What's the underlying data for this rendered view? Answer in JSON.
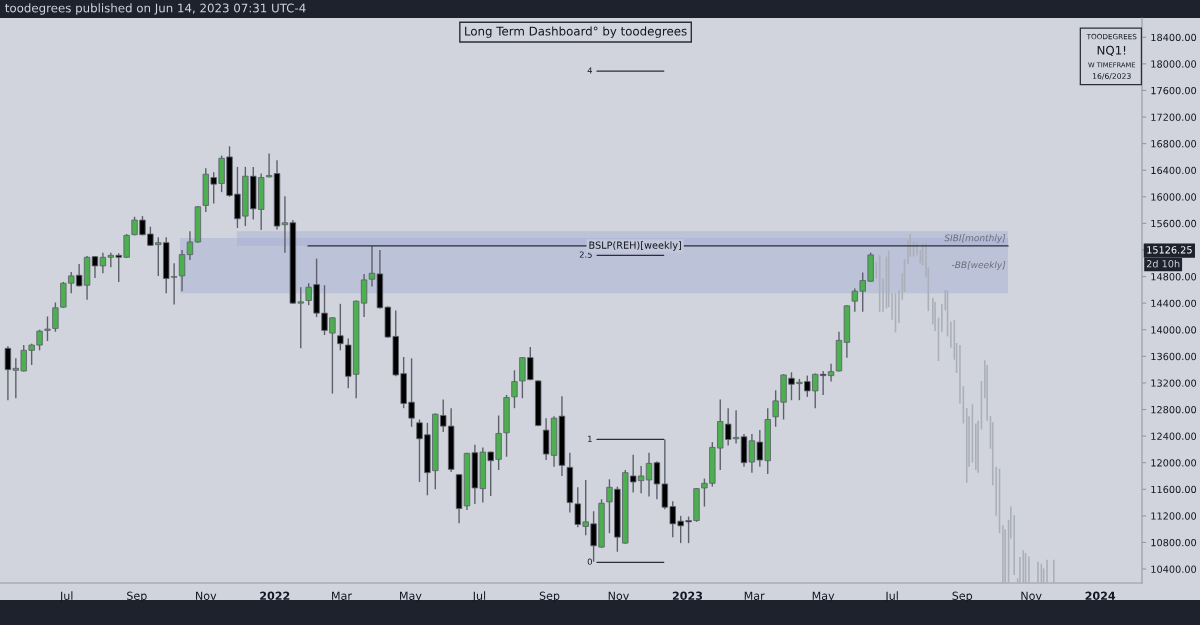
{
  "chart_data": {
    "type": "candlestick",
    "title": "Long Term Dashboard° by toodegrees",
    "annotations": [
      "toodegrees published on Jun 14, 2023 07:31 UTC-4",
      "TOODEGREES",
      "NQ1!",
      "W TIMEFRAME",
      "16/6/2023",
      "15126.25",
      "2d 10h"
    ],
    "series": [
      {
        "type": "candlestick",
        "x": [
          "2021-05-10",
          "2021-05-17",
          "2021-05-24",
          "2021-05-31",
          "2021-06-07",
          "2021-06-14",
          "2021-06-21",
          "2021-06-28",
          "2021-07-05",
          "2021-07-12",
          "2021-07-19",
          "2021-07-26",
          "2021-08-02",
          "2021-08-09",
          "2021-08-16",
          "2021-08-23",
          "2021-08-30",
          "2021-09-06",
          "2021-09-13",
          "2021-09-20",
          "2021-09-27",
          "2021-10-04",
          "2021-10-11",
          "2021-10-18",
          "2021-10-25",
          "2021-11-01",
          "2021-11-08",
          "2021-11-15",
          "2021-11-22",
          "2021-11-29",
          "2021-12-06",
          "2021-12-13",
          "2021-12-20",
          "2021-12-27",
          "2022-01-03",
          "2022-01-10",
          "2022-01-17",
          "2022-01-24",
          "2022-01-31",
          "2022-02-07",
          "2022-02-14",
          "2022-02-21",
          "2022-02-28",
          "2022-03-07",
          "2022-03-14",
          "2022-03-21",
          "2022-03-28",
          "2022-04-04",
          "2022-04-11",
          "2022-04-18",
          "2022-04-25",
          "2022-05-02",
          "2022-05-09",
          "2022-05-16",
          "2022-05-23",
          "2022-05-30",
          "2022-06-06",
          "2022-06-13",
          "2022-06-20",
          "2022-06-27",
          "2022-07-04",
          "2022-07-11",
          "2022-07-18",
          "2022-07-25",
          "2022-08-01",
          "2022-08-08",
          "2022-08-15",
          "2022-08-22",
          "2022-08-29",
          "2022-09-05",
          "2022-09-12",
          "2022-09-19",
          "2022-09-26",
          "2022-10-03",
          "2022-10-10",
          "2022-10-17",
          "2022-10-24",
          "2022-10-31",
          "2022-11-07",
          "2022-11-14",
          "2022-11-21",
          "2022-11-28",
          "2022-12-05",
          "2022-12-12",
          "2022-12-19",
          "2022-12-26",
          "2023-01-02",
          "2023-01-09",
          "2023-01-16",
          "2023-01-23",
          "2023-01-30",
          "2023-02-06",
          "2023-02-13",
          "2023-02-20",
          "2023-02-27",
          "2023-03-06",
          "2023-03-13",
          "2023-03-20",
          "2023-03-27",
          "2023-04-03",
          "2023-04-10",
          "2023-04-17",
          "2023-04-24",
          "2023-05-01",
          "2023-05-08",
          "2023-05-15",
          "2023-05-22",
          "2023-05-29",
          "2023-06-05",
          "2023-06-12"
        ],
        "ohlc": [
          [
            13720,
            13750,
            12940,
            13400
          ],
          [
            13390,
            13570,
            12970,
            13420
          ],
          [
            13380,
            13770,
            13370,
            13690
          ],
          [
            13690,
            13790,
            13470,
            13770
          ],
          [
            13770,
            14000,
            13690,
            13980
          ],
          [
            13990,
            14200,
            13830,
            14010
          ],
          [
            14020,
            14410,
            13970,
            14330
          ],
          [
            14340,
            14720,
            14330,
            14700
          ],
          [
            14700,
            14870,
            14550,
            14810
          ],
          [
            14820,
            14990,
            14650,
            14660
          ],
          [
            14670,
            15110,
            14450,
            15090
          ],
          [
            15100,
            15110,
            14780,
            14960
          ],
          [
            14960,
            15160,
            14850,
            15090
          ],
          [
            15090,
            15160,
            14940,
            15120
          ],
          [
            15120,
            15150,
            14720,
            15090
          ],
          [
            15090,
            15440,
            15080,
            15420
          ],
          [
            15430,
            15700,
            15420,
            15650
          ],
          [
            15650,
            15710,
            15420,
            15430
          ],
          [
            15440,
            15550,
            15260,
            15270
          ],
          [
            15280,
            15390,
            14810,
            15310
          ],
          [
            15310,
            15390,
            14550,
            14770
          ],
          [
            14790,
            15000,
            14380,
            14800
          ],
          [
            14810,
            15200,
            14580,
            15130
          ],
          [
            15130,
            15480,
            15050,
            15320
          ],
          [
            15320,
            15860,
            15310,
            15850
          ],
          [
            15870,
            16430,
            15770,
            16340
          ],
          [
            16290,
            16370,
            15900,
            16190
          ],
          [
            16200,
            16620,
            16070,
            16580
          ],
          [
            16600,
            16760,
            16000,
            16020
          ],
          [
            16040,
            16450,
            15530,
            15670
          ],
          [
            15710,
            16450,
            15560,
            16310
          ],
          [
            16310,
            16450,
            15660,
            15820
          ],
          [
            15810,
            16350,
            15500,
            16290
          ],
          [
            16300,
            16650,
            16290,
            16320
          ],
          [
            16350,
            16550,
            15510,
            15560
          ],
          [
            15580,
            16010,
            15160,
            15610
          ],
          [
            15610,
            15650,
            14390,
            14400
          ],
          [
            14400,
            14640,
            13720,
            14420
          ],
          [
            14440,
            14700,
            14370,
            14640
          ],
          [
            14680,
            15070,
            14190,
            14250
          ],
          [
            14250,
            14670,
            13920,
            13990
          ],
          [
            13950,
            14190,
            13040,
            14180
          ],
          [
            13910,
            14390,
            13690,
            13790
          ],
          [
            13770,
            13870,
            13120,
            13300
          ],
          [
            13330,
            14440,
            12970,
            14430
          ],
          [
            14400,
            14840,
            14190,
            14750
          ],
          [
            14760,
            15260,
            14650,
            14850
          ],
          [
            14840,
            15200,
            14320,
            14330
          ],
          [
            14340,
            14350,
            13880,
            13890
          ],
          [
            13900,
            14290,
            13300,
            13320
          ],
          [
            13340,
            13590,
            12820,
            12890
          ],
          [
            12910,
            13570,
            12540,
            12670
          ],
          [
            12600,
            12650,
            11710,
            12360
          ],
          [
            12420,
            12600,
            11510,
            11850
          ],
          [
            11880,
            12740,
            11600,
            12730
          ],
          [
            12710,
            12950,
            12460,
            12550
          ],
          [
            12550,
            12820,
            11860,
            11900
          ],
          [
            11820,
            11830,
            11090,
            11310
          ],
          [
            11350,
            12150,
            11290,
            12140
          ],
          [
            12150,
            12270,
            11380,
            11620
          ],
          [
            11610,
            12230,
            11400,
            12160
          ],
          [
            12160,
            12170,
            11500,
            12030
          ],
          [
            12050,
            12710,
            11890,
            12440
          ],
          [
            12450,
            13020,
            12090,
            12980
          ],
          [
            12990,
            13390,
            12820,
            13220
          ],
          [
            13230,
            13590,
            12970,
            13580
          ],
          [
            13580,
            13740,
            13240,
            13250
          ],
          [
            13230,
            13240,
            12550,
            12560
          ],
          [
            12490,
            12670,
            12040,
            12130
          ],
          [
            12110,
            12700,
            11940,
            12670
          ],
          [
            12700,
            13000,
            11800,
            11960
          ],
          [
            11930,
            12150,
            11250,
            11400
          ],
          [
            11380,
            11630,
            11030,
            11070
          ],
          [
            11040,
            11740,
            10910,
            11110
          ],
          [
            11080,
            11270,
            10510,
            10750
          ],
          [
            10730,
            11450,
            10720,
            11390
          ],
          [
            11410,
            11750,
            10940,
            11630
          ],
          [
            11600,
            11640,
            10660,
            10880
          ],
          [
            10790,
            11890,
            10780,
            11850
          ],
          [
            11800,
            12120,
            11550,
            11710
          ],
          [
            11730,
            11950,
            11540,
            11800
          ],
          [
            11740,
            12150,
            11490,
            11990
          ],
          [
            12000,
            12020,
            11450,
            11680
          ],
          [
            11680,
            12350,
            11300,
            11330
          ],
          [
            11340,
            11420,
            10880,
            11080
          ],
          [
            11120,
            11200,
            10790,
            11050
          ],
          [
            11130,
            11190,
            10790,
            11110
          ],
          [
            11130,
            11620,
            11110,
            11610
          ],
          [
            11620,
            11760,
            11340,
            11690
          ],
          [
            11690,
            12310,
            11640,
            12230
          ],
          [
            12220,
            12950,
            11890,
            12620
          ],
          [
            12580,
            12820,
            12260,
            12350
          ],
          [
            12360,
            12790,
            12290,
            12380
          ],
          [
            12390,
            12430,
            11940,
            12000
          ],
          [
            12010,
            12430,
            11850,
            12330
          ],
          [
            12310,
            12490,
            11940,
            12040
          ],
          [
            12030,
            12820,
            11830,
            12650
          ],
          [
            12690,
            13090,
            12540,
            12930
          ],
          [
            12910,
            13330,
            12650,
            13320
          ],
          [
            13270,
            13360,
            12940,
            13180
          ],
          [
            13190,
            13260,
            12940,
            13210
          ],
          [
            13220,
            13310,
            12990,
            13080
          ],
          [
            13080,
            13340,
            12820,
            13330
          ],
          [
            13330,
            13380,
            13020,
            13310
          ],
          [
            13310,
            13490,
            13220,
            13370
          ],
          [
            13380,
            13970,
            13370,
            13840
          ],
          [
            13810,
            14370,
            13580,
            14360
          ],
          [
            14430,
            14620,
            14270,
            14580
          ],
          [
            14580,
            14860,
            14270,
            14740
          ],
          [
            14730,
            15160,
            14720,
            15126.25
          ]
        ],
        "colors": [
          "#000000",
          "#4caf50",
          "#4caf50",
          "#4caf50",
          "#4caf50",
          "#4caf50",
          "#4caf50",
          "#4caf50",
          "#4caf50",
          "#000000",
          "#4caf50",
          "#000000",
          "#4caf50",
          "#4caf50",
          "#000000",
          "#4caf50",
          "#4caf50",
          "#000000",
          "#000000",
          "#4caf50",
          "#000000",
          "#4caf50",
          "#4caf50",
          "#4caf50",
          "#4caf50",
          "#4caf50",
          "#000000",
          "#4caf50",
          "#000000",
          "#000000",
          "#4caf50",
          "#000000",
          "#4caf50",
          "#4caf50",
          "#000000",
          "#4caf50",
          "#000000",
          "#4caf50",
          "#4caf50",
          "#000000",
          "#000000",
          "#4caf50",
          "#000000",
          "#000000",
          "#4caf50",
          "#4caf50",
          "#4caf50",
          "#000000",
          "#000000",
          "#000000",
          "#000000",
          "#000000",
          "#000000",
          "#000000",
          "#4caf50",
          "#000000",
          "#000000",
          "#000000",
          "#4caf50",
          "#000000",
          "#4caf50",
          "#000000",
          "#4caf50",
          "#4caf50",
          "#4caf50",
          "#4caf50",
          "#000000",
          "#000000",
          "#000000",
          "#4caf50",
          "#000000",
          "#000000",
          "#000000",
          "#4caf50",
          "#000000",
          "#4caf50",
          "#4caf50",
          "#000000",
          "#4caf50",
          "#000000",
          "#4caf50",
          "#4caf50",
          "#000000",
          "#000000",
          "#000000",
          "#000000",
          "#000000",
          "#4caf50",
          "#4caf50",
          "#4caf50",
          "#4caf50",
          "#000000",
          "#4caf50",
          "#000000",
          "#4caf50",
          "#000000",
          "#4caf50",
          "#4caf50",
          "#4caf50",
          "#000000",
          "#4caf50",
          "#000000",
          "#4caf50",
          "#000000",
          "#4caf50",
          "#4caf50",
          "#4caf50",
          "#4caf50",
          "#4caf50",
          "#4caf50"
        ]
      },
      {
        "type": "line",
        "name": "4",
        "color": "#2a2e39",
        "x": [
          "2022-10-13",
          "2022-12-11"
        ],
        "values": [
          17890,
          17890
        ]
      },
      {
        "type": "line",
        "name": "2.5",
        "color": "#2a2e39",
        "x": [
          "2022-10-13",
          "2022-12-11"
        ],
        "values": [
          15120,
          15120
        ]
      },
      {
        "type": "line",
        "name": "1",
        "color": "#2a2e39",
        "x": [
          "2022-10-13",
          "2022-12-11"
        ],
        "values": [
          12350,
          12350
        ]
      },
      {
        "type": "line",
        "name": "0",
        "color": "#2a2e39",
        "x": [
          "2022-10-13",
          "2022-12-11"
        ],
        "values": [
          10500,
          10500
        ]
      },
      {
        "type": "bar",
        "color": "#abafb8",
        "x": [
          "2023-06-17",
          "2023-06-20",
          "2023-06-23",
          "2023-06-26",
          "2023-06-28",
          "2023-07-01",
          "2023-07-04",
          "2023-07-07",
          "2023-07-10",
          "2023-07-12",
          "2023-07-15",
          "2023-07-17",
          "2023-07-20",
          "2023-07-23",
          "2023-07-26",
          "2023-07-28",
          "2023-07-31",
          "2023-08-02",
          "2023-08-06",
          "2023-08-08",
          "2023-08-11",
          "2023-08-14",
          "2023-08-17",
          "2023-08-19",
          "2023-08-22",
          "2023-08-25",
          "2023-08-27",
          "2023-08-30",
          "2023-09-02",
          "2023-09-05",
          "2023-09-07",
          "2023-09-10",
          "2023-09-13",
          "2023-09-15",
          "2023-09-18",
          "2023-09-21",
          "2023-09-23",
          "2023-09-26",
          "2023-09-28",
          "2023-10-01",
          "2023-10-04",
          "2023-10-07",
          "2023-10-09",
          "2023-10-12",
          "2023-10-14",
          "2023-10-17",
          "2023-10-20",
          "2023-10-22",
          "2023-10-25",
          "2023-10-27",
          "2023-10-30",
          "2023-11-07",
          "2023-11-10",
          "2023-11-12",
          "2023-11-15",
          "2023-11-21"
        ],
        "base": [
          14770,
          14270,
          14270,
          14320,
          14340,
          14150,
          13960,
          14100,
          14450,
          14570,
          14990,
          15100,
          15100,
          15120,
          15000,
          14970,
          14790,
          14280,
          14080,
          13980,
          13530,
          13970,
          14290,
          13900,
          13730,
          13550,
          13350,
          12890,
          12590,
          11700,
          11940,
          12000,
          11890,
          11850,
          12500,
          12970,
          12630,
          12210,
          11660,
          11200,
          10940,
          10200,
          10200,
          10200,
          10860,
          10310,
          10200,
          10200,
          10200,
          10200,
          10200,
          10200,
          10200,
          10200,
          10200,
          10200
        ],
        "values": [
          250,
          850,
          500,
          780,
          850,
          400,
          590,
          490,
          400,
          490,
          360,
          340,
          220,
          200,
          200,
          330,
          520,
          660,
          400,
          440,
          650,
          420,
          310,
          690,
          390,
          600,
          450,
          880,
          560,
          1120,
          760,
          880,
          700,
          780,
          730,
          570,
          840,
          490,
          950,
          740,
          970,
          860,
          800,
          940,
          480,
          900,
          60,
          380,
          480,
          440,
          390,
          310,
          280,
          210,
          340,
          340
        ]
      }
    ],
    "xlim": [
      "2021-05-03",
      "2024-02-07"
    ],
    "ylim": [
      10190,
      18690
    ],
    "xticks": [
      {
        "value": "2021-07-01",
        "label": "Jul"
      },
      {
        "value": "2021-09-01",
        "label": "Sep"
      },
      {
        "value": "2021-11-01",
        "label": "Nov"
      },
      {
        "value": "2022-01-01",
        "label": "2022"
      },
      {
        "value": "2022-03-01",
        "label": "Mar"
      },
      {
        "value": "2022-05-01",
        "label": "May"
      },
      {
        "value": "2022-07-01",
        "label": "Jul"
      },
      {
        "value": "2022-09-01",
        "label": "Sep"
      },
      {
        "value": "2022-11-01",
        "label": "Nov"
      },
      {
        "value": "2023-01-01",
        "label": "2023"
      },
      {
        "value": "2023-03-01",
        "label": "Mar"
      },
      {
        "value": "2023-05-01",
        "label": "May"
      },
      {
        "value": "2023-07-01",
        "label": "Jul"
      },
      {
        "value": "2023-09-01",
        "label": "Sep"
      },
      {
        "value": "2023-11-01",
        "label": "Nov"
      },
      {
        "value": "2024-01-01",
        "label": "2024"
      }
    ],
    "yticks": [
      {
        "value": 10400,
        "label": "10400.00"
      },
      {
        "value": 10800,
        "label": "10800.00"
      },
      {
        "value": 11200,
        "label": "11200.00"
      },
      {
        "value": 11600,
        "label": "11600.00"
      },
      {
        "value": 12000,
        "label": "12000.00"
      },
      {
        "value": 12400,
        "label": "12400.00"
      },
      {
        "value": 12800,
        "label": "12800.00"
      },
      {
        "value": 13200,
        "label": "13200.00"
      },
      {
        "value": 13600,
        "label": "13600.00"
      },
      {
        "value": 14000,
        "label": "14000.00"
      },
      {
        "value": 14400,
        "label": "14400.00"
      },
      {
        "value": 14800,
        "label": "14800.00"
      },
      {
        "value": 15200,
        "label": null
      },
      {
        "value": 15600,
        "label": "15600.00"
      },
      {
        "value": 16000,
        "label": "16000.00"
      },
      {
        "value": 16400,
        "label": "16400.00"
      },
      {
        "value": 16800,
        "label": "16800.00"
      },
      {
        "value": 17200,
        "label": "17200.00"
      },
      {
        "value": 17600,
        "label": "17600.00"
      },
      {
        "value": 18000,
        "label": "18000.00"
      },
      {
        "value": 18400,
        "label": "18400.00"
      }
    ],
    "bands": [
      {
        "axis": "y",
        "from": 15260,
        "to": 15480,
        "label": "SIBI[monthly]",
        "color": "#a7b0d4"
      },
      {
        "axis": "y",
        "from": 14550,
        "to": 15380,
        "label": "-BB[weekly]",
        "color": "#a7b0d4"
      }
    ],
    "ref_lines": [
      {
        "axis": "y",
        "value": 15260,
        "label": "BSLP(REH)[weekly]",
        "color": "#2a2e39"
      }
    ],
    "grid": false,
    "legend": false
  }
}
